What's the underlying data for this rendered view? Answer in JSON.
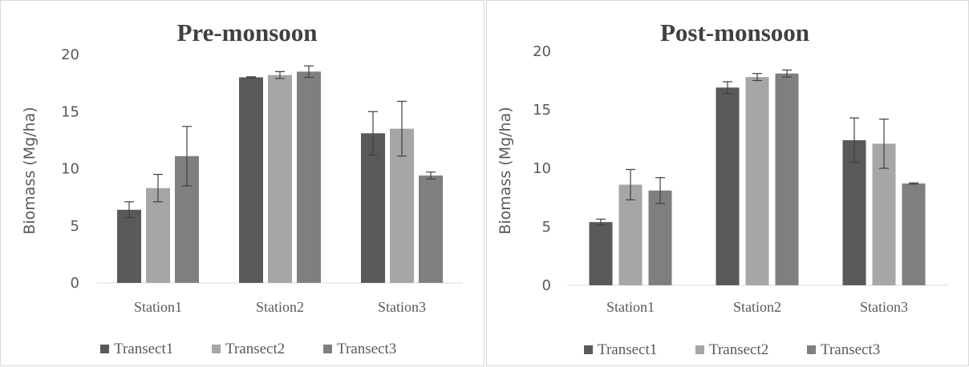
{
  "chart_data": [
    {
      "type": "bar",
      "title": "Pre-monsoon",
      "ylabel": "Biomass (Mg/ha)",
      "xlabel": "",
      "ylim": [
        0,
        20
      ],
      "yticks": [
        0,
        5,
        10,
        15,
        20
      ],
      "categories": [
        "Station1",
        "Station2",
        "Station3"
      ],
      "series": [
        {
          "name": "Transect1",
          "color": "#595959",
          "values": [
            6.4,
            18.0,
            13.1
          ],
          "errors": [
            0.7,
            0.05,
            1.9
          ]
        },
        {
          "name": "Transect2",
          "color": "#a6a6a6",
          "values": [
            8.3,
            18.2,
            13.5
          ],
          "errors": [
            1.2,
            0.3,
            2.4
          ]
        },
        {
          "name": "Transect3",
          "color": "#7f7f7f",
          "values": [
            11.1,
            18.5,
            9.4
          ],
          "errors": [
            2.6,
            0.5,
            0.3
          ]
        }
      ],
      "legend_position": "bottom",
      "grid": false
    },
    {
      "type": "bar",
      "title": "Post-monsoon",
      "ylabel": "Biomass (Mg/ha)",
      "xlabel": "",
      "ylim": [
        0,
        20
      ],
      "yticks": [
        0,
        5,
        10,
        15,
        20
      ],
      "categories": [
        "Station1",
        "Station2",
        "Station3"
      ],
      "series": [
        {
          "name": "Transect1",
          "color": "#595959",
          "values": [
            5.4,
            16.9,
            12.4
          ],
          "errors": [
            0.25,
            0.5,
            1.9
          ]
        },
        {
          "name": "Transect2",
          "color": "#a6a6a6",
          "values": [
            8.6,
            17.8,
            12.1
          ],
          "errors": [
            1.3,
            0.3,
            2.1
          ]
        },
        {
          "name": "Transect3",
          "color": "#7f7f7f",
          "values": [
            8.1,
            18.1,
            8.7
          ],
          "errors": [
            1.1,
            0.3,
            0.05
          ]
        }
      ],
      "legend_position": "bottom",
      "grid": false
    }
  ]
}
